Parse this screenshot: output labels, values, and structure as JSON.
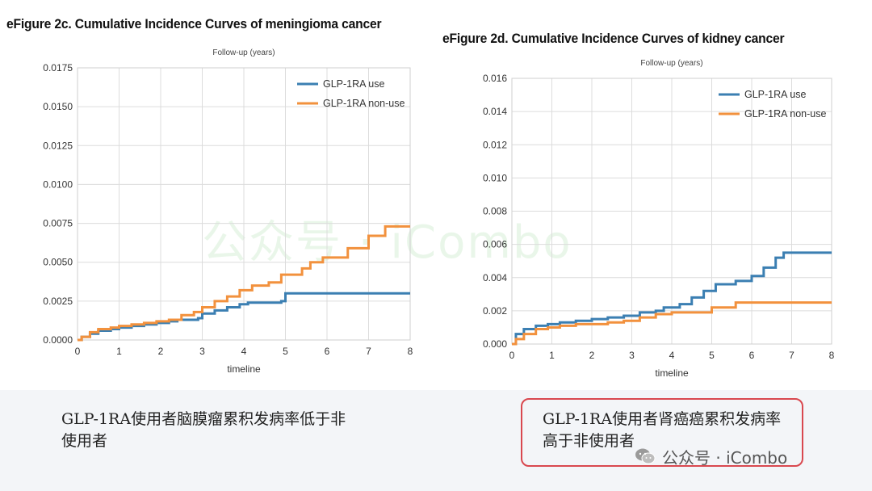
{
  "watermark": "公众号 · iCombo",
  "captions": {
    "left": "GLP-1RA使用者脑膜瘤累积发病率低于非使用者",
    "right": "GLP-1RA使用者肾癌癌累积发病率高于非使用者"
  },
  "footer": {
    "account": "公众号 · iCombo",
    "icon": "wechat-icon"
  },
  "colors": {
    "use": "#3b7fb2",
    "nonuse": "#f2913d",
    "highlight_border": "#d9484f"
  },
  "chart_data": [
    {
      "type": "line",
      "title": "eFigure 2c. Cumulative Incidence Curves of meningioma cancer",
      "subtitle": "Follow-up (years)",
      "xlabel": "timeline",
      "ylabel": "",
      "xlim": [
        0,
        8
      ],
      "ylim": [
        0,
        0.0175
      ],
      "xticks": [
        "0",
        "1",
        "2",
        "3",
        "4",
        "5",
        "6",
        "7",
        "8"
      ],
      "yticks": [
        "0.0000",
        "0.0025",
        "0.0050",
        "0.0075",
        "0.0100",
        "0.0125",
        "0.0150",
        "0.0175"
      ],
      "grid": true,
      "legend": "top-right",
      "series": [
        {
          "name": "GLP-1RA use",
          "x": [
            0,
            0.1,
            0.3,
            0.5,
            0.8,
            1.0,
            1.3,
            1.6,
            1.9,
            2.2,
            2.4,
            2.6,
            2.9,
            3.0,
            3.3,
            3.6,
            3.9,
            4.1,
            4.5,
            4.9,
            5.0,
            5.5,
            6.0,
            7.0,
            8.0
          ],
          "y": [
            0,
            0.0002,
            0.0004,
            0.0006,
            0.0007,
            0.0008,
            0.0009,
            0.001,
            0.0011,
            0.0012,
            0.0013,
            0.0013,
            0.0014,
            0.0017,
            0.0019,
            0.0021,
            0.0023,
            0.0024,
            0.0024,
            0.0025,
            0.003,
            0.003,
            0.003,
            0.003,
            0.003
          ]
        },
        {
          "name": "GLP-1RA non-use",
          "x": [
            0,
            0.1,
            0.3,
            0.5,
            0.8,
            1.0,
            1.3,
            1.6,
            1.9,
            2.2,
            2.5,
            2.8,
            3.0,
            3.3,
            3.6,
            3.9,
            4.2,
            4.6,
            4.9,
            5.4,
            5.6,
            5.9,
            6.5,
            7.0,
            7.4,
            8.0
          ],
          "y": [
            0,
            0.0002,
            0.0005,
            0.0007,
            0.0008,
            0.0009,
            0.001,
            0.0011,
            0.0012,
            0.0013,
            0.0016,
            0.0018,
            0.0021,
            0.0025,
            0.0028,
            0.0032,
            0.0035,
            0.0037,
            0.0042,
            0.0046,
            0.005,
            0.0053,
            0.0059,
            0.0067,
            0.0073,
            0.0073
          ]
        }
      ]
    },
    {
      "type": "line",
      "title": "eFigure 2d. Cumulative Incidence Curves of kidney cancer",
      "subtitle": "Follow-up (years)",
      "xlabel": "timeline",
      "ylabel": "",
      "xlim": [
        0,
        8
      ],
      "ylim": [
        0,
        0.016
      ],
      "xticks": [
        "0",
        "1",
        "2",
        "3",
        "4",
        "5",
        "6",
        "7",
        "8"
      ],
      "yticks": [
        "0.000",
        "0.002",
        "0.004",
        "0.006",
        "0.008",
        "0.010",
        "0.012",
        "0.014",
        "0.016"
      ],
      "grid": true,
      "legend": "top-right",
      "series": [
        {
          "name": "GLP-1RA use",
          "x": [
            0,
            0.1,
            0.3,
            0.6,
            0.9,
            1.2,
            1.6,
            2.0,
            2.4,
            2.8,
            3.2,
            3.6,
            3.8,
            4.2,
            4.5,
            4.8,
            5.1,
            5.6,
            6.0,
            6.3,
            6.6,
            6.8,
            7.0,
            8.0
          ],
          "y": [
            0,
            0.0006,
            0.0009,
            0.0011,
            0.0012,
            0.0013,
            0.0014,
            0.0015,
            0.0016,
            0.0017,
            0.0019,
            0.002,
            0.0022,
            0.0024,
            0.0028,
            0.0032,
            0.0036,
            0.0038,
            0.0041,
            0.0046,
            0.0052,
            0.0055,
            0.0055,
            0.0055
          ]
        },
        {
          "name": "GLP-1RA non-use",
          "x": [
            0,
            0.1,
            0.3,
            0.6,
            0.9,
            1.2,
            1.6,
            2.0,
            2.4,
            2.8,
            3.2,
            3.6,
            4.0,
            4.5,
            5.0,
            5.6,
            6.0,
            7.0,
            8.0
          ],
          "y": [
            0,
            0.0003,
            0.0006,
            0.0009,
            0.001,
            0.0011,
            0.0012,
            0.0012,
            0.0013,
            0.0014,
            0.0016,
            0.0018,
            0.0019,
            0.0019,
            0.0022,
            0.0025,
            0.0025,
            0.0025,
            0.0025
          ]
        }
      ]
    }
  ]
}
